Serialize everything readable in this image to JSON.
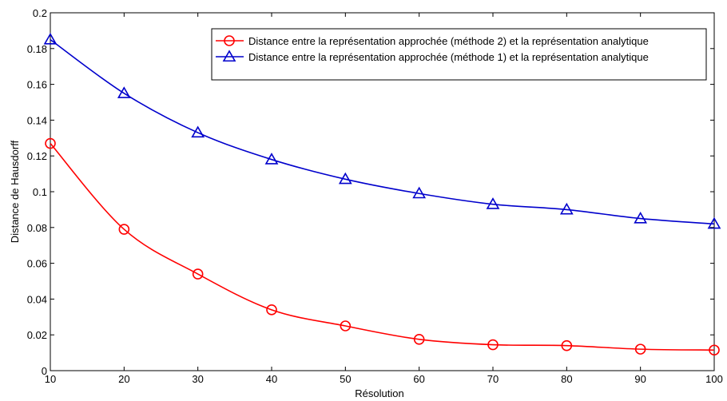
{
  "chart_data": {
    "type": "line",
    "xlabel": "Résolution",
    "ylabel": "Distance de Hausdorff",
    "xlim": [
      10,
      100
    ],
    "ylim": [
      0,
      0.2
    ],
    "x_ticks": [
      "10",
      "20",
      "30",
      "40",
      "50",
      "60",
      "70",
      "80",
      "90",
      "100"
    ],
    "y_ticks": [
      "0",
      "0.02",
      "0.04",
      "0.06",
      "0.08",
      "0.1",
      "0.12",
      "0.14",
      "0.16",
      "0.18",
      "0.2"
    ],
    "grid": false,
    "legend_position": "top-right",
    "x": [
      10,
      20,
      30,
      40,
      50,
      60,
      70,
      80,
      90,
      100
    ],
    "series": [
      {
        "name": "Distance entre la représentation approchée (méthode 2) et la représentation analytique",
        "color": "#ff0000",
        "marker": "circle",
        "values": [
          0.127,
          0.079,
          0.054,
          0.034,
          0.025,
          0.0175,
          0.0145,
          0.014,
          0.012,
          0.0115
        ]
      },
      {
        "name": "Distance entre la représentation approchée (méthode 1) et la représentation analytique",
        "color": "#0000cc",
        "marker": "triangle",
        "values": [
          0.185,
          0.155,
          0.133,
          0.118,
          0.107,
          0.099,
          0.093,
          0.09,
          0.085,
          0.082
        ]
      }
    ]
  }
}
